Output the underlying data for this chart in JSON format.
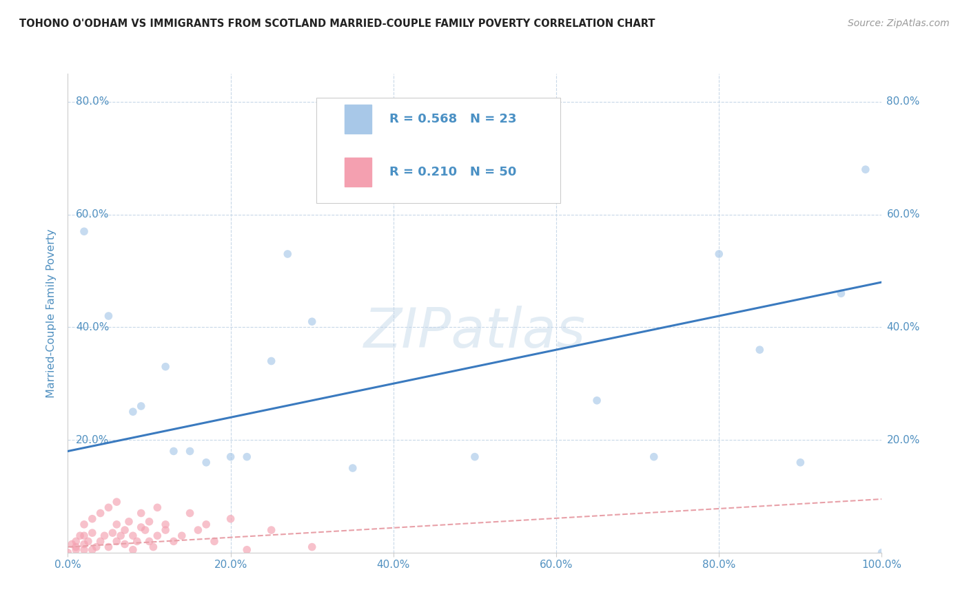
{
  "title": "TOHONO O'ODHAM VS IMMIGRANTS FROM SCOTLAND MARRIED-COUPLE FAMILY POVERTY CORRELATION CHART",
  "source": "Source: ZipAtlas.com",
  "ylabel": "Married-Couple Family Poverty",
  "xlabel": "",
  "watermark": "ZIPatlas",
  "R_blue": 0.568,
  "N_blue": 23,
  "R_pink": 0.21,
  "N_pink": 50,
  "blue_color": "#a8c8e8",
  "pink_color": "#f4a0b0",
  "blue_line_color": "#3a7abf",
  "pink_line_color": "#e8a0a8",
  "blue_scatter": [
    [
      2,
      57
    ],
    [
      5,
      42
    ],
    [
      8,
      25
    ],
    [
      9,
      26
    ],
    [
      12,
      33
    ],
    [
      13,
      18
    ],
    [
      15,
      18
    ],
    [
      17,
      16
    ],
    [
      20,
      17
    ],
    [
      22,
      17
    ],
    [
      25,
      34
    ],
    [
      27,
      53
    ],
    [
      30,
      41
    ],
    [
      35,
      15
    ],
    [
      50,
      17
    ],
    [
      65,
      27
    ],
    [
      72,
      17
    ],
    [
      80,
      53
    ],
    [
      85,
      36
    ],
    [
      90,
      16
    ],
    [
      95,
      46
    ],
    [
      98,
      68
    ],
    [
      100,
      0
    ]
  ],
  "pink_scatter": [
    [
      0.5,
      1.5
    ],
    [
      1,
      0.5
    ],
    [
      1,
      2
    ],
    [
      1.5,
      3
    ],
    [
      2,
      0.5
    ],
    [
      2,
      1.5
    ],
    [
      2,
      5
    ],
    [
      2.5,
      2
    ],
    [
      3,
      0.5
    ],
    [
      3,
      3.5
    ],
    [
      3,
      6
    ],
    [
      3.5,
      1
    ],
    [
      4,
      2
    ],
    [
      4,
      7
    ],
    [
      4.5,
      3
    ],
    [
      5,
      1
    ],
    [
      5,
      8
    ],
    [
      5.5,
      3.5
    ],
    [
      6,
      2
    ],
    [
      6,
      5
    ],
    [
      6,
      9
    ],
    [
      6.5,
      3
    ],
    [
      7,
      1.5
    ],
    [
      7,
      4
    ],
    [
      7.5,
      5.5
    ],
    [
      8,
      0.5
    ],
    [
      8,
      3
    ],
    [
      8.5,
      2
    ],
    [
      9,
      4.5
    ],
    [
      9,
      7
    ],
    [
      9.5,
      4
    ],
    [
      10,
      2
    ],
    [
      10,
      5.5
    ],
    [
      10.5,
      1
    ],
    [
      11,
      3
    ],
    [
      11,
      8
    ],
    [
      12,
      4
    ],
    [
      12,
      5
    ],
    [
      13,
      2
    ],
    [
      14,
      3
    ],
    [
      15,
      7
    ],
    [
      16,
      4
    ],
    [
      17,
      5
    ],
    [
      18,
      2
    ],
    [
      20,
      6
    ],
    [
      22,
      0.5
    ],
    [
      25,
      4
    ],
    [
      30,
      1
    ],
    [
      0,
      0
    ],
    [
      1,
      1
    ],
    [
      2,
      3
    ]
  ],
  "xlim": [
    0,
    100
  ],
  "ylim": [
    0,
    85
  ],
  "xticks": [
    0,
    20,
    40,
    60,
    80,
    100
  ],
  "yticks": [
    0,
    20,
    40,
    60,
    80
  ],
  "xticklabels": [
    "0.0%",
    "20.0%",
    "40.0%",
    "60.0%",
    "80.0%",
    "100.0%"
  ],
  "yticklabels": [
    "",
    "20.0%",
    "40.0%",
    "60.0%",
    "80.0%"
  ],
  "grid_color": "#c8d8e8",
  "bg_color": "#ffffff",
  "tick_color": "#5090c0",
  "legend_R_color": "#4a90c4",
  "marker_size": 70,
  "marker_alpha": 0.65,
  "blue_line_intercept": 18.0,
  "blue_line_slope": 0.3,
  "pink_line_intercept": 1.0,
  "pink_line_slope": 0.085
}
